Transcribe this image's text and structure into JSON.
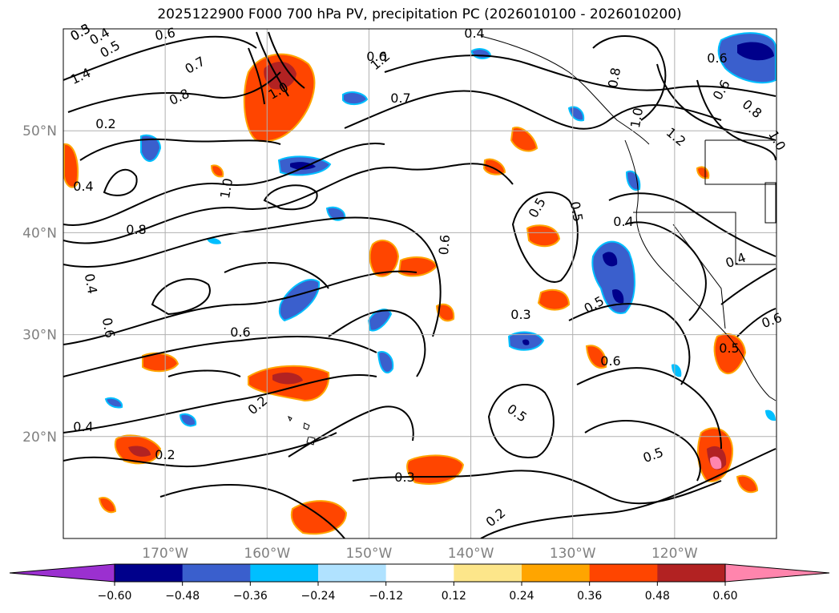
{
  "title": "2025122900 F000 700 hPa PV, precipitation PC (2026010100 - 2026010200)",
  "map": {
    "lon_range": [
      -180,
      -110
    ],
    "lat_range": [
      10,
      60
    ],
    "lon_ticks": [
      {
        "lon": -170,
        "label": "170°W"
      },
      {
        "lon": -160,
        "label": "160°W"
      },
      {
        "lon": -150,
        "label": "150°W"
      },
      {
        "lon": -140,
        "label": "140°W"
      },
      {
        "lon": -130,
        "label": "130°W"
      },
      {
        "lon": -120,
        "label": "120°W"
      }
    ],
    "lat_ticks": [
      {
        "lat": 20,
        "label": "20°N"
      },
      {
        "lat": 30,
        "label": "30°N"
      },
      {
        "lat": 40,
        "label": "40°N"
      },
      {
        "lat": 50,
        "label": "50°N"
      }
    ],
    "grid": true,
    "fill_field": "precipitation PC",
    "contour_field": "700 hPa PV",
    "contour_labels": [
      "0.3",
      "0.4",
      "0.5",
      "0.6",
      "0.7",
      "0.8",
      "1.0",
      "1.2",
      "1.4",
      "0.2",
      "0.4",
      "0.8",
      "1.0",
      "0.7",
      "0.6",
      "0.5",
      "0.5",
      "0.4",
      "0.3",
      "0.6",
      "0.5",
      "0.6",
      "0.5",
      "0.4",
      "0.2",
      "0.2",
      "0.3",
      "0.5",
      "0.2",
      "0.6",
      "0.5",
      "0.4",
      "0.4",
      "0.6",
      "0.8",
      "1.0",
      "1.2",
      "1.0",
      "0.6",
      "0.7",
      "0.6",
      "0.8",
      "0.6",
      "0.4",
      "0.5"
    ]
  },
  "colorbar": {
    "ticks": [
      "−0.60",
      "−0.48",
      "−0.36",
      "−0.24",
      "−0.12",
      "0.12",
      "0.24",
      "0.36",
      "0.48",
      "0.60"
    ],
    "colors": [
      "#9b30d0",
      "#00008b",
      "#3a5fcd",
      "#00bfff",
      "#b0e2ff",
      "#ffffff",
      "#fde68a",
      "#ffa500",
      "#ff4500",
      "#b22222",
      "#ff85ad"
    ],
    "extend": "both"
  }
}
